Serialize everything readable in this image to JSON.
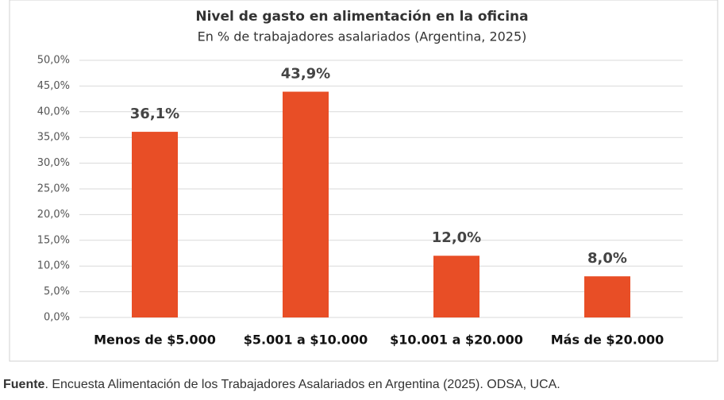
{
  "chart_data": {
    "type": "bar",
    "title": "Nivel de gasto en alimentación en la oficina",
    "subtitle": "En % de trabajadores asalariados (Argentina, 2025)",
    "categories": [
      "Menos de $5.000",
      "$5.001 a $10.000",
      "$10.001 a $20.000",
      "Más de $20.000"
    ],
    "values": [
      36.1,
      43.9,
      12.0,
      8.0
    ],
    "value_labels": [
      "36,1%",
      "43,9%",
      "12,0%",
      "8,0%"
    ],
    "color": "#e84e26",
    "ylim": [
      0,
      50
    ],
    "yticks": [
      {
        "value": 0,
        "label": "0,0%"
      },
      {
        "value": 5,
        "label": "5,0%"
      },
      {
        "value": 10,
        "label": "10,0%"
      },
      {
        "value": 15,
        "label": "15,0%"
      },
      {
        "value": 20,
        "label": "20,0%"
      },
      {
        "value": 25,
        "label": "25,0%"
      },
      {
        "value": 30,
        "label": "30,0%"
      },
      {
        "value": 35,
        "label": "35,0%"
      },
      {
        "value": 40,
        "label": "40,0%"
      },
      {
        "value": 45,
        "label": "45,0%"
      },
      {
        "value": 50,
        "label": "50,0%"
      }
    ],
    "grid": true,
    "source_label": "Fuente",
    "source": ". Encuesta Alimentación de los Trabajadores Asalariados en Argentina (2025). ODSA, UCA."
  }
}
